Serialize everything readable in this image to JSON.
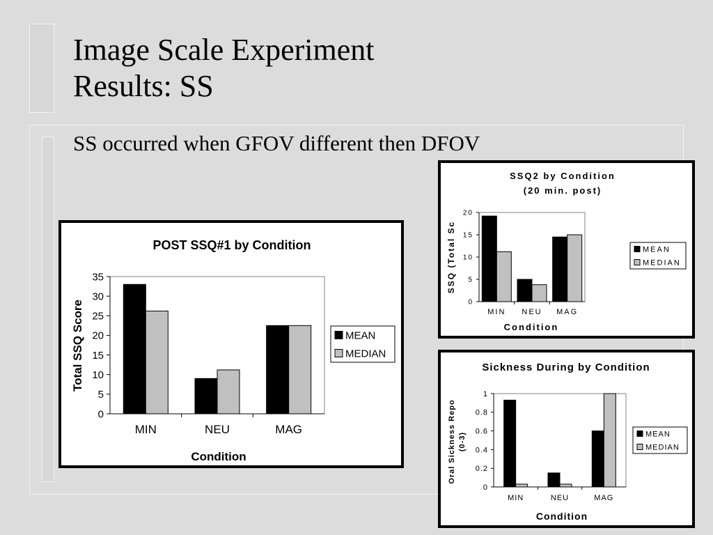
{
  "slide": {
    "title_line1": "Image Scale Experiment",
    "title_line2": "Results: SS",
    "bullet": "SS occurred when GFOV different then DFOV"
  },
  "colors": {
    "mean": "#000000",
    "median": "#c0c0c0",
    "background": "#dcdcdc"
  },
  "chart_data": [
    {
      "id": "chart1",
      "type": "bar",
      "title": "POST SSQ#1 by Condition",
      "xlabel": "Condition",
      "ylabel": "Total SSQ Score",
      "categories": [
        "MIN",
        "NEU",
        "MAG"
      ],
      "ylim": [
        0,
        35
      ],
      "yticks": [
        0,
        5,
        10,
        15,
        20,
        25,
        30,
        35
      ],
      "legend_position": "right",
      "grid": false,
      "series": [
        {
          "name": "MEAN",
          "color": "#000000",
          "values": [
            33,
            9,
            22.5
          ]
        },
        {
          "name": "MEDIAN",
          "color": "#c0c0c0",
          "values": [
            26.2,
            11.2,
            22.5
          ]
        }
      ]
    },
    {
      "id": "chart2",
      "type": "bar",
      "title": "SSQ2  by Condition",
      "subtitle": "(20 min. post)",
      "xlabel": "Condition",
      "ylabel": "SSQ (Total Sc",
      "categories": [
        "MIN",
        "NEU",
        "MAG"
      ],
      "ylim": [
        0,
        20
      ],
      "yticks": [
        0,
        5,
        10,
        15,
        20
      ],
      "legend_position": "right",
      "grid": false,
      "series": [
        {
          "name": "MEAN",
          "color": "#000000",
          "values": [
            19.2,
            5,
            14.5
          ]
        },
        {
          "name": "MEDIAN",
          "color": "#c0c0c0",
          "values": [
            11.2,
            3.8,
            15
          ]
        }
      ]
    },
    {
      "id": "chart3",
      "type": "bar",
      "title": "Sickness During by Condition",
      "xlabel": "Condition",
      "ylabel": "Oral Sickness Repo",
      "ylabel2": "(0-3)",
      "categories": [
        "MIN",
        "NEU",
        "MAG"
      ],
      "ylim": [
        0,
        1
      ],
      "yticks": [
        "0",
        "0.2",
        "0.4",
        "0.6",
        "0.8",
        "1"
      ],
      "legend_position": "right",
      "grid": false,
      "series": [
        {
          "name": "MEAN",
          "color": "#000000",
          "values": [
            0.93,
            0.15,
            0.6
          ]
        },
        {
          "name": "MEDIAN",
          "color": "#c0c0c0",
          "values": [
            0.03,
            0.03,
            1
          ]
        }
      ]
    }
  ]
}
